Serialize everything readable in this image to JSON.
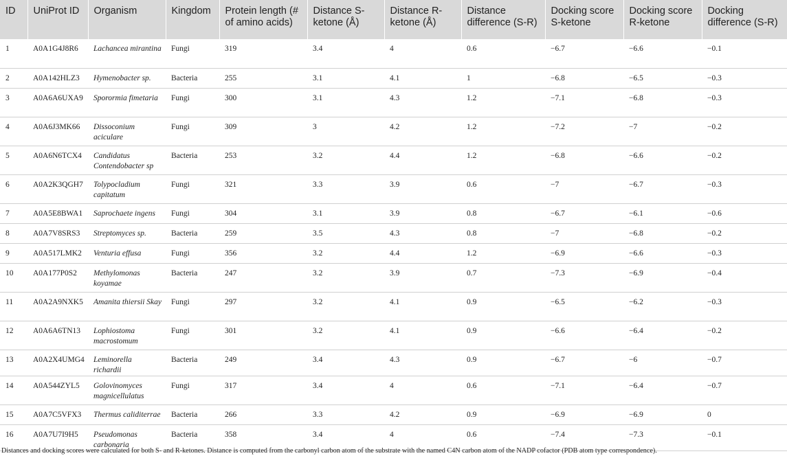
{
  "table": {
    "headers": [
      "ID",
      "UniProt ID",
      "Organism",
      "Kingdom",
      "Protein length (# of amino acids)",
      "Distance S-ketone (Å)",
      "Distance R-ketone (Å)",
      "Distance difference (S-R)",
      "Docking score S-ketone",
      "Docking score R-ketone",
      "Docking difference (S-R)"
    ],
    "rows": [
      [
        "1",
        "A0A1G4J8R6",
        "Lachancea mirantina",
        "Fungi",
        "319",
        "3.4",
        "4",
        "0.6",
        "−6.7",
        "−6.6",
        "−0.1"
      ],
      [
        "2",
        "A0A142HLZ3",
        "Hymenobacter sp.",
        "Bacteria",
        "255",
        "3.1",
        "4.1",
        "1",
        "−6.8",
        "−6.5",
        "−0.3"
      ],
      [
        "3",
        "A0A6A6UXA9",
        "Sporormia fimetaria",
        "Fungi",
        "300",
        "3.1",
        "4.3",
        "1.2",
        "−7.1",
        "−6.8",
        "−0.3"
      ],
      [
        "4",
        "A0A6J3MK66",
        "Dissoconium aciculare",
        "Fungi",
        "309",
        "3",
        "4.2",
        "1.2",
        "−7.2",
        "−7",
        "−0.2"
      ],
      [
        "5",
        "A0A6N6TCX4",
        "Candidatus Contendobacter sp",
        "Bacteria",
        "253",
        "3.2",
        "4.4",
        "1.2",
        "−6.8",
        "−6.6",
        "−0.2"
      ],
      [
        "6",
        "A0A2K3QGH7",
        "Tolypocladium capitatum",
        "Fungi",
        "321",
        "3.3",
        "3.9",
        "0.6",
        "−7",
        "−6.7",
        "−0.3"
      ],
      [
        "7",
        "A0A5E8BWA1",
        "Saprochaete ingens",
        "Fungi",
        "304",
        "3.1",
        "3.9",
        "0.8",
        "−6.7",
        "−6.1",
        "−0.6"
      ],
      [
        "8",
        "A0A7V8SRS3",
        "Streptomyces sp.",
        "Bacteria",
        "259",
        "3.5",
        "4.3",
        "0.8",
        "−7",
        "−6.8",
        "−0.2"
      ],
      [
        "9",
        "A0A517LMK2",
        "Venturia effusa",
        "Fungi",
        "356",
        "3.2",
        "4.4",
        "1.2",
        "−6.9",
        "−6.6",
        "−0.3"
      ],
      [
        "10",
        "A0A177P0S2",
        "Methylomonas koyamae",
        "Bacteria",
        "247",
        "3.2",
        "3.9",
        "0.7",
        "−7.3",
        "−6.9",
        "−0.4"
      ],
      [
        "11",
        "A0A2A9NXK5",
        "Amanita thiersii Skay",
        "Fungi",
        "297",
        "3.2",
        "4.1",
        "0.9",
        "−6.5",
        "−6.2",
        "−0.3"
      ],
      [
        "12",
        "A0A6A6TN13",
        "Lophiostoma macrostomum",
        "Fungi",
        "301",
        "3.2",
        "4.1",
        "0.9",
        "−6.6",
        "−6.4",
        "−0.2"
      ],
      [
        "13",
        "A0A2X4UMG4",
        "Leminorella richardii",
        "Bacteria",
        "249",
        "3.4",
        "4.3",
        "0.9",
        "−6.7",
        "−6",
        "−0.7"
      ],
      [
        "14",
        "A0A544ZYL5",
        "Golovinomyces magnicellulatus",
        "Fungi",
        "317",
        "3.4",
        "4",
        "0.6",
        "−7.1",
        "−6.4",
        "−0.7"
      ],
      [
        "15",
        "A0A7C5VFX3",
        "Thermus caliditerrae",
        "Bacteria",
        "266",
        "3.3",
        "4.2",
        "0.9",
        "−6.9",
        "−6.9",
        "0"
      ],
      [
        "16",
        "A0A7U7I9H5",
        "Pseudomonas carbonaria",
        "Bacteria",
        "358",
        "3.4",
        "4",
        "0.6",
        "−7.4",
        "−7.3",
        "−0.1"
      ]
    ]
  },
  "footnote": "Distances and docking scores were calculated for both S- and R-ketones. Distance is computed from the carbonyl carbon atom of the substrate with the named C4N carbon atom of the NADP cofactor (PDB atom type correspondence)."
}
